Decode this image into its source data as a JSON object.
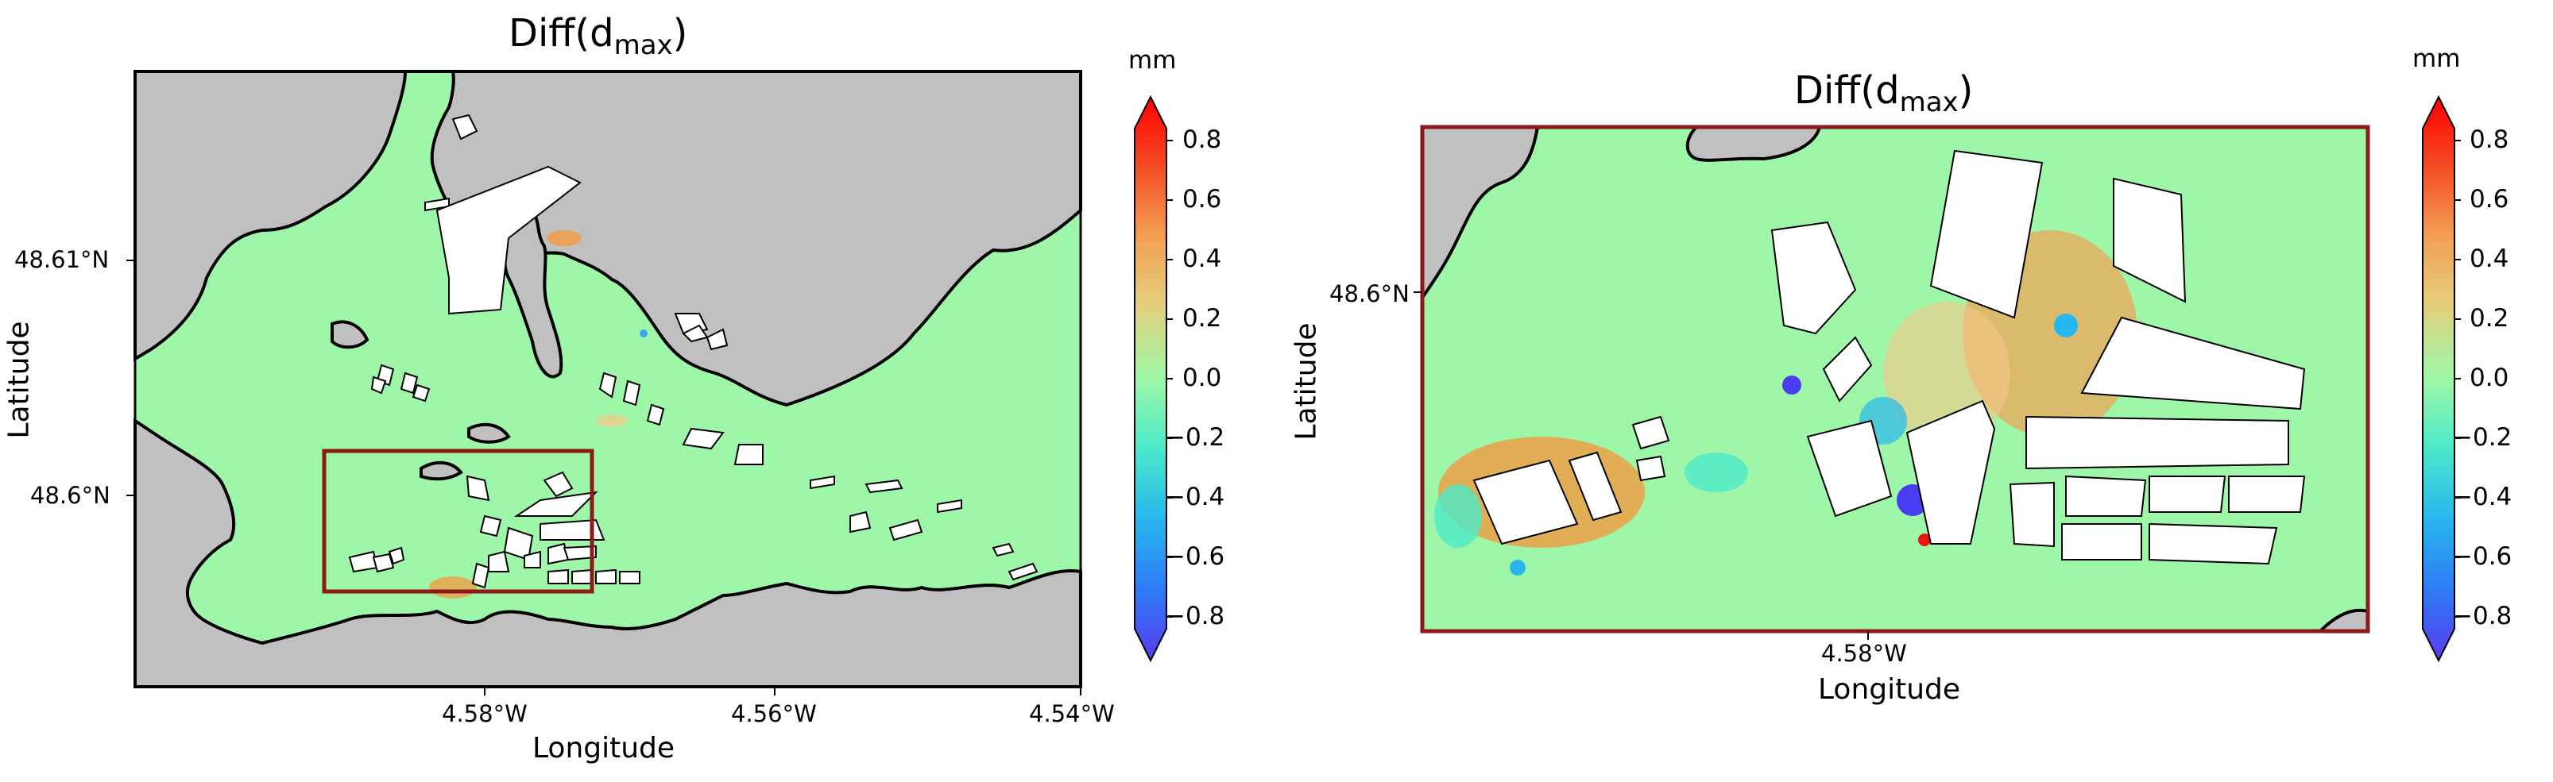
{
  "panels": [
    {
      "title": "Diff",
      "title_sub": "max",
      "xlabel": "Longitude",
      "ylabel": "Latitude",
      "xticks": [
        "4.58°W",
        "4.56°W",
        "4.54°W"
      ],
      "yticks": [
        "48.61°N",
        "48.6°N"
      ],
      "colorbar": {
        "unit": "mm",
        "ticks": [
          "0.8",
          "0.6",
          "0.4",
          "0.2",
          "0.0",
          "−0.2",
          "−0.4",
          "−0.6",
          "−0.8"
        ]
      }
    },
    {
      "title": "Diff",
      "title_sub": "max",
      "xlabel": "Longitude",
      "ylabel": "Latitude",
      "xticks": [
        "4.58°W"
      ],
      "yticks": [
        "48.6°N"
      ],
      "colorbar": {
        "unit": "mm",
        "ticks": [
          "0.8",
          "0.6",
          "0.4",
          "0.2",
          "0.0",
          "−0.2",
          "−0.4",
          "−0.6",
          "−0.8"
        ]
      }
    }
  ],
  "colors": {
    "land": "#c0c0c0",
    "water_neutral": "#9ef7a8",
    "positive_max": "#e8160c",
    "negative_max": "#4a3cf0",
    "highlight_box": "#8b1a1a"
  },
  "chart_data": {
    "type": "heatmap",
    "variable": "Diff(d_max)",
    "unit": "mm",
    "color_range": [
      -0.9,
      0.9
    ],
    "colorbar_ticks": [
      0.8,
      0.6,
      0.4,
      0.2,
      0.0,
      -0.2,
      -0.4,
      -0.6,
      -0.8
    ],
    "colormap": "rainbow"
  }
}
